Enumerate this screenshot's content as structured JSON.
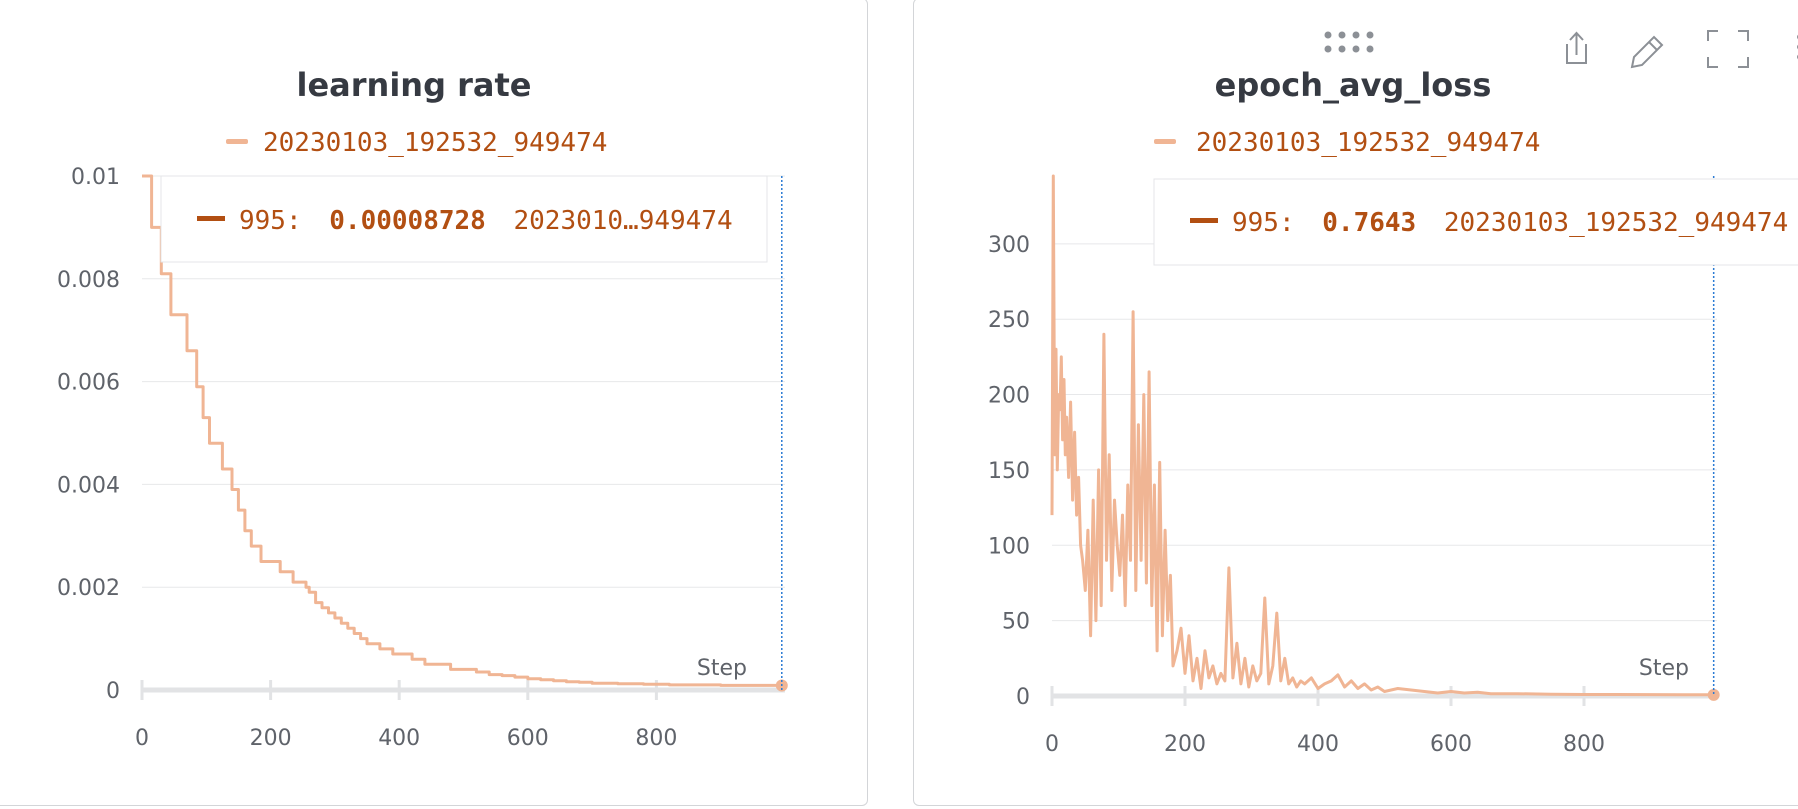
{
  "series_color": "#f0b594",
  "accent_color": "#b24f12",
  "panels": [
    {
      "title": "learning rate",
      "legend": "20230103_192532_949474",
      "tooltip": {
        "step": "995:",
        "value": "0.00008728",
        "run": "2023010…949474"
      },
      "step_label": "Step"
    },
    {
      "title": "epoch_avg_loss",
      "legend": "20230103_192532_949474",
      "tooltip": {
        "step": "995:",
        "value": "0.7643",
        "run": "20230103_192532_949474"
      },
      "step_label": "Step",
      "toolbar_icons": [
        "drag-handle-icon",
        "share-icon",
        "edit-icon",
        "fullscreen-icon",
        "more-icon"
      ]
    }
  ],
  "chart_data": [
    {
      "type": "line",
      "title": "learning rate",
      "xlabel": "Step",
      "ylabel": "",
      "x_ticks": [
        "0",
        "200",
        "400",
        "600",
        "800"
      ],
      "y_ticks": [
        "0",
        "0.002",
        "0.004",
        "0.006",
        "0.008",
        "0.01"
      ],
      "xlim": [
        0,
        1000
      ],
      "ylim": [
        0,
        0.01
      ],
      "grid": true,
      "legend_position": "top",
      "series": [
        {
          "name": "20230103_192532_949474",
          "x": [
            0,
            15,
            30,
            45,
            70,
            85,
            95,
            105,
            125,
            140,
            150,
            160,
            170,
            185,
            200,
            215,
            235,
            255,
            260,
            270,
            280,
            290,
            300,
            310,
            320,
            330,
            340,
            350,
            360,
            370,
            380,
            390,
            400,
            420,
            440,
            460,
            480,
            500,
            520,
            540,
            560,
            580,
            600,
            620,
            640,
            660,
            680,
            700,
            740,
            780,
            820,
            860,
            900,
            940,
            995
          ],
          "y": [
            0.01,
            0.009,
            0.0081,
            0.0073,
            0.0066,
            0.0059,
            0.0053,
            0.0048,
            0.0043,
            0.0039,
            0.0035,
            0.0031,
            0.0028,
            0.0025,
            0.0025,
            0.0023,
            0.0021,
            0.002,
            0.0019,
            0.0017,
            0.0016,
            0.0015,
            0.0014,
            0.0013,
            0.0012,
            0.0011,
            0.001,
            0.0009,
            0.0009,
            0.0008,
            0.0008,
            0.0007,
            0.0007,
            0.0006,
            0.0005,
            0.0005,
            0.0004,
            0.0004,
            0.00035,
            0.0003,
            0.00028,
            0.00025,
            0.00022,
            0.0002,
            0.00018,
            0.00016,
            0.00015,
            0.00013,
            0.00012,
            0.00011,
            0.0001,
            0.0001,
            9e-05,
            9e-05,
            8.728e-05
          ]
        }
      ]
    },
    {
      "type": "line",
      "title": "epoch_avg_loss",
      "xlabel": "Step",
      "ylabel": "",
      "x_ticks": [
        "0",
        "200",
        "400",
        "600",
        "800"
      ],
      "y_ticks": [
        "0",
        "50",
        "100",
        "150",
        "200",
        "250",
        "300"
      ],
      "xlim": [
        0,
        1000
      ],
      "ylim": [
        0,
        345
      ],
      "grid": true,
      "legend_position": "top",
      "series": [
        {
          "name": "20230103_192532_949474",
          "x": [
            0,
            2,
            4,
            6,
            8,
            10,
            12,
            14,
            16,
            18,
            20,
            22,
            25,
            28,
            31,
            34,
            37,
            40,
            43,
            46,
            50,
            54,
            58,
            62,
            66,
            70,
            74,
            78,
            82,
            86,
            90,
            94,
            98,
            102,
            106,
            110,
            114,
            118,
            122,
            126,
            130,
            134,
            138,
            142,
            146,
            150,
            154,
            158,
            162,
            166,
            170,
            174,
            178,
            182,
            188,
            194,
            200,
            206,
            212,
            218,
            224,
            230,
            236,
            242,
            248,
            254,
            260,
            266,
            272,
            278,
            284,
            290,
            296,
            302,
            308,
            314,
            320,
            326,
            332,
            338,
            344,
            350,
            356,
            362,
            368,
            374,
            380,
            390,
            400,
            410,
            420,
            430,
            440,
            450,
            460,
            470,
            480,
            490,
            500,
            520,
            540,
            560,
            580,
            600,
            620,
            640,
            660,
            700,
            750,
            800,
            850,
            900,
            950,
            995
          ],
          "y": [
            120,
            345,
            160,
            230,
            150,
            200,
            190,
            225,
            170,
            210,
            160,
            185,
            145,
            195,
            130,
            175,
            120,
            145,
            100,
            90,
            70,
            110,
            40,
            130,
            50,
            150,
            60,
            240,
            90,
            160,
            70,
            130,
            100,
            80,
            120,
            60,
            140,
            90,
            255,
            70,
            180,
            90,
            200,
            75,
            215,
            60,
            140,
            30,
            155,
            40,
            110,
            50,
            80,
            20,
            30,
            45,
            15,
            40,
            10,
            25,
            5,
            30,
            12,
            20,
            8,
            15,
            10,
            85,
            12,
            35,
            8,
            25,
            6,
            20,
            10,
            15,
            65,
            8,
            20,
            55,
            10,
            25,
            8,
            12,
            6,
            10,
            8,
            12,
            5,
            8,
            10,
            14,
            6,
            10,
            5,
            8,
            4,
            6,
            3,
            5,
            4,
            3,
            2,
            3,
            2,
            2.5,
            1.5,
            1.5,
            1.2,
            1,
            1,
            0.9,
            0.8,
            0.7643
          ]
        }
      ]
    }
  ]
}
